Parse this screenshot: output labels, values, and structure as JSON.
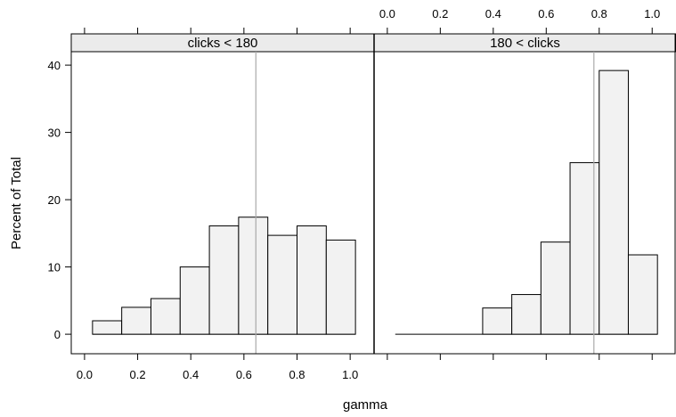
{
  "chart_data": {
    "type": "bar",
    "xlabel": "gamma",
    "ylabel": "Percent of Total",
    "xlim": [
      -0.05,
      1.09
    ],
    "ylim": [
      -2.9,
      42
    ],
    "x_ticks": [
      "0.0",
      "0.2",
      "0.4",
      "0.6",
      "0.8",
      "1.0"
    ],
    "y_ticks": [
      "0",
      "10",
      "20",
      "30",
      "40"
    ],
    "bin_edges": [
      0.03,
      0.14,
      0.25,
      0.36,
      0.47,
      0.58,
      0.69,
      0.8,
      0.91,
      1.02
    ],
    "panels": [
      {
        "strip": "clicks < 180",
        "values": [
          2.0,
          4.0,
          5.3,
          10.0,
          16.1,
          17.4,
          14.7,
          16.1,
          14.0
        ],
        "reference_line": 0.645
      },
      {
        "strip": "180 < clicks",
        "values": [
          0,
          0,
          0,
          3.9,
          5.9,
          13.7,
          25.5,
          39.2,
          11.8
        ],
        "reference_line": 0.78
      }
    ],
    "colors": {
      "bar_fill": "#f2f2f2",
      "strip_fill": "#ebebeb",
      "reference_line": "#aaaaaa"
    }
  }
}
